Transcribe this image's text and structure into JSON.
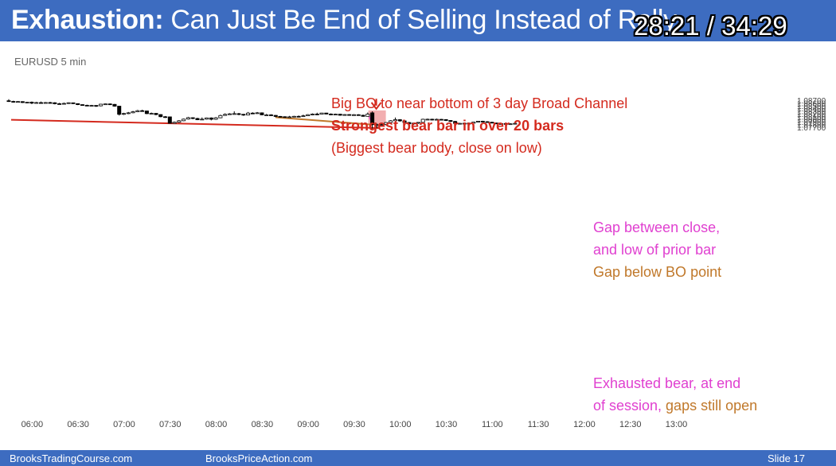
{
  "slide": {
    "title_bold": "Exhaustion:",
    "title_rest": " Can Just Be End of Selling Instead of Rally",
    "timer": "28:21 / 34:29",
    "symbol": "EURUSD 5 min"
  },
  "chart_data": {
    "type": "candlestick",
    "symbol": "EURUSD 5 min",
    "y_ticks": [
      "1.08700",
      "1.08600",
      "1.08500",
      "1.08400",
      "1.08300",
      "1.08200",
      "1.08100",
      "1.08000",
      "1.07900",
      "1.07800",
      "1.07700"
    ],
    "x_ticks": [
      "06:00",
      "06:30",
      "07:00",
      "07:30",
      "08:00",
      "08:30",
      "09:00",
      "09:30",
      "10:00",
      "10:30",
      "11:00",
      "11:30",
      "12:00",
      "12:30",
      "13:00"
    ],
    "ylim": [
      1.0766,
      1.0874
    ],
    "candles": [
      [
        1.0868,
        1.08652,
        1.08738,
        1.08636
      ],
      [
        1.08655,
        1.08633,
        1.0868,
        1.0861
      ],
      [
        1.08638,
        1.0865,
        1.08668,
        1.08615
      ],
      [
        1.08648,
        1.08612,
        1.0866,
        1.08595
      ],
      [
        1.08612,
        1.08625,
        1.0864,
        1.0858
      ],
      [
        1.08628,
        1.0859,
        1.0865,
        1.08555
      ],
      [
        1.0859,
        1.08612,
        1.08638,
        1.08575
      ],
      [
        1.0861,
        1.08598,
        1.0865,
        1.0858
      ],
      [
        1.08598,
        1.08612,
        1.08632,
        1.0858
      ],
      [
        1.08612,
        1.08605,
        1.0864,
        1.08585
      ],
      [
        1.08605,
        1.08568,
        1.08625,
        1.08545
      ],
      [
        1.0857,
        1.0856,
        1.086,
        1.0854
      ],
      [
        1.0856,
        1.0858,
        1.08612,
        1.08548
      ],
      [
        1.0858,
        1.08605,
        1.08618,
        1.08562
      ],
      [
        1.08602,
        1.08572,
        1.08612,
        1.0856
      ],
      [
        1.08572,
        1.08535,
        1.0858,
        1.08518
      ],
      [
        1.08535,
        1.08512,
        1.08545,
        1.085
      ],
      [
        1.08512,
        1.085,
        1.08532,
        1.08482
      ],
      [
        1.085,
        1.08505,
        1.08525,
        1.0846
      ],
      [
        1.08505,
        1.08488,
        1.08515,
        1.0845
      ],
      [
        1.0849,
        1.08552,
        1.08565,
        1.0847
      ],
      [
        1.08552,
        1.08562,
        1.08575,
        1.0853
      ],
      [
        1.08562,
        1.08545,
        1.08578,
        1.0852
      ],
      [
        1.08545,
        1.08478,
        1.0856,
        1.08458
      ],
      [
        1.08478,
        1.08175,
        1.08485,
        1.0813
      ],
      [
        1.08175,
        1.08205,
        1.0823,
        1.08148
      ],
      [
        1.08205,
        1.0823,
        1.08262,
        1.0818
      ],
      [
        1.08232,
        1.0827,
        1.083,
        1.08215
      ],
      [
        1.0827,
        1.0831,
        1.0834,
        1.08255
      ],
      [
        1.0831,
        1.083,
        1.08345,
        1.0827
      ],
      [
        1.083,
        1.082,
        1.0831,
        1.0818
      ],
      [
        1.082,
        1.0821,
        1.0824,
        1.0819
      ],
      [
        1.0821,
        1.08165,
        1.08225,
        1.0814
      ],
      [
        1.08165,
        1.08085,
        1.0818,
        1.08065
      ],
      [
        1.08085,
        1.0808,
        1.0811,
        1.0804
      ],
      [
        1.0808,
        1.0784,
        1.08092,
        1.0783
      ],
      [
        1.0784,
        1.0788,
        1.07905,
        1.0783
      ],
      [
        1.0788,
        1.07935,
        1.0796,
        1.0786
      ],
      [
        1.07935,
        1.07995,
        1.08015,
        1.0792
      ],
      [
        1.07998,
        1.0805,
        1.0808,
        1.0798
      ],
      [
        1.08048,
        1.0802,
        1.08065,
        1.07992
      ],
      [
        1.0802,
        1.07972,
        1.08045,
        1.07958
      ],
      [
        1.07975,
        1.07995,
        1.08058,
        1.0796
      ],
      [
        1.07995,
        1.0804,
        1.08055,
        1.07978
      ],
      [
        1.0804,
        1.0799,
        1.0806,
        1.0795
      ],
      [
        1.0799,
        1.08045,
        1.08075,
        1.0797
      ],
      [
        1.08045,
        1.0813,
        1.08162,
        1.0803
      ],
      [
        1.08135,
        1.08172,
        1.0821,
        1.0812
      ],
      [
        1.08175,
        1.08192,
        1.08218,
        1.0816
      ],
      [
        1.08192,
        1.082,
        1.08285,
        1.0818
      ],
      [
        1.08198,
        1.08175,
        1.08225,
        1.0814
      ],
      [
        1.08175,
        1.0815,
        1.0819,
        1.08118
      ],
      [
        1.0815,
        1.0822,
        1.08262,
        1.08135
      ],
      [
        1.0822,
        1.08205,
        1.0825,
        1.08185
      ],
      [
        1.08205,
        1.0823,
        1.0826,
        1.08195
      ],
      [
        1.0823,
        1.08155,
        1.08245,
        1.0814
      ],
      [
        1.08155,
        1.08155,
        1.08192,
        1.0813
      ],
      [
        1.08155,
        1.08135,
        1.08178,
        1.0811
      ],
      [
        1.08135,
        1.08095,
        1.0815,
        1.08065
      ],
      [
        1.08098,
        1.08085,
        1.08112,
        1.0806
      ],
      [
        1.08085,
        1.08065,
        1.081,
        1.0805
      ],
      [
        1.08065,
        1.0808,
        1.08115,
        1.08058
      ],
      [
        1.0808,
        1.081,
        1.08118,
        1.08065
      ],
      [
        1.081,
        1.0809,
        1.0813,
        1.0808
      ],
      [
        1.0809,
        1.0812,
        1.0816,
        1.08075
      ],
      [
        1.0812,
        1.08162,
        1.08178,
        1.0811
      ],
      [
        1.0816,
        1.08185,
        1.0821,
        1.0814
      ],
      [
        1.08185,
        1.0818,
        1.08235,
        1.08165
      ],
      [
        1.0818,
        1.08222,
        1.08232,
        1.0817
      ],
      [
        1.08222,
        1.08185,
        1.0823,
        1.08175
      ],
      [
        1.08185,
        1.0816,
        1.0821,
        1.0814
      ],
      [
        1.0816,
        1.0818,
        1.082,
        1.0814
      ],
      [
        1.0818,
        1.0814,
        1.08195,
        1.08122
      ],
      [
        1.0814,
        1.08165,
        1.0818,
        1.0813
      ],
      [
        1.08165,
        1.0814,
        1.0818,
        1.08125
      ],
      [
        1.0814,
        1.0816,
        1.08182,
        1.0813
      ],
      [
        1.0816,
        1.0814,
        1.08178,
        1.08122
      ],
      [
        1.0814,
        1.081,
        1.0816,
        1.08085
      ],
      [
        1.081,
        1.08182,
        1.0824,
        1.0809
      ],
      [
        1.0823,
        1.0779,
        1.08285,
        1.0764
      ],
      [
        1.0779,
        1.0779,
        1.0783,
        1.0766
      ],
      [
        1.0779,
        1.07795,
        1.07835,
        1.0771
      ],
      [
        1.07795,
        1.0787,
        1.0788,
        1.0776
      ],
      [
        1.0787,
        1.07935,
        1.0796,
        1.0783
      ],
      [
        1.07935,
        1.07975,
        1.08055,
        1.07905
      ],
      [
        1.07975,
        1.0793,
        1.07995,
        1.079
      ],
      [
        1.0793,
        1.0787,
        1.07945,
        1.0783
      ],
      [
        1.0787,
        1.0782,
        1.0789,
        1.0779
      ],
      [
        1.0782,
        1.07848,
        1.07865,
        1.0778
      ],
      [
        1.07848,
        1.07875,
        1.07885,
        1.0782
      ],
      [
        1.07875,
        1.0799,
        1.08012,
        1.0786
      ],
      [
        1.0799,
        1.07992,
        1.08015,
        1.0796
      ],
      [
        1.07992,
        1.07975,
        1.08012,
        1.07945
      ],
      [
        1.07975,
        1.07988,
        1.08015,
        1.07955
      ],
      [
        1.07988,
        1.07978,
        1.08005,
        1.07955
      ],
      [
        1.07978,
        1.07945,
        1.07995,
        1.07925
      ],
      [
        1.07945,
        1.0791,
        1.0796,
        1.07888
      ],
      [
        1.0791,
        1.07835,
        1.0793,
        1.07805
      ],
      [
        1.07835,
        1.07838,
        1.07858,
        1.07822
      ],
      [
        1.07838,
        1.07842,
        1.07865,
        1.07825
      ],
      [
        1.07842,
        1.07845,
        1.0787,
        1.07828
      ],
      [
        1.07845,
        1.07885,
        1.07895,
        1.07835
      ],
      [
        1.07885,
        1.07918,
        1.0793,
        1.0787
      ],
      [
        1.07918,
        1.079,
        1.07935,
        1.0788
      ],
      [
        1.079,
        1.0788,
        1.0792,
        1.0786
      ],
      [
        1.0788,
        1.0785,
        1.07895,
        1.07835
      ],
      [
        1.0785,
        1.0782,
        1.07868,
        1.0781
      ],
      [
        1.0782,
        1.0783,
        1.07852,
        1.07808
      ],
      [
        1.0783,
        1.07818,
        1.07848,
        1.07805
      ],
      [
        1.07818,
        1.07822,
        1.07842,
        1.07802
      ],
      [
        1.07822,
        1.07838,
        1.07855,
        1.07812
      ]
    ],
    "x_tick_bar_index": [
      3,
      13,
      23,
      33,
      43,
      53,
      63,
      73,
      83,
      93,
      103,
      113,
      123,
      133,
      143
    ],
    "annotations": {
      "line1": "Big BO to near bottom of 3 day Broad Channel",
      "line2": "Strongest bear bar in over 20 bars",
      "line3": "(Biggest bear body, close on low)",
      "gap1a": "Gap between close,",
      "gap1b": "and low of prior bar",
      "gap2": "Gap below BO point",
      "exh1": "Exhausted bear, at end",
      "exh2a": "of session, ",
      "exh2b": "gaps still open"
    },
    "colors": {
      "bull_body": "#ffffff",
      "bear_body": "#000000",
      "trendline": "#d42a1e",
      "gap_line": "#c0782a",
      "highlight": "#f2aeb0",
      "arrow": "#d42a1e"
    }
  },
  "footer": {
    "left": "BrooksTradingCourse.com",
    "center": "BrooksPriceAction.com",
    "slide": "Slide  17"
  }
}
